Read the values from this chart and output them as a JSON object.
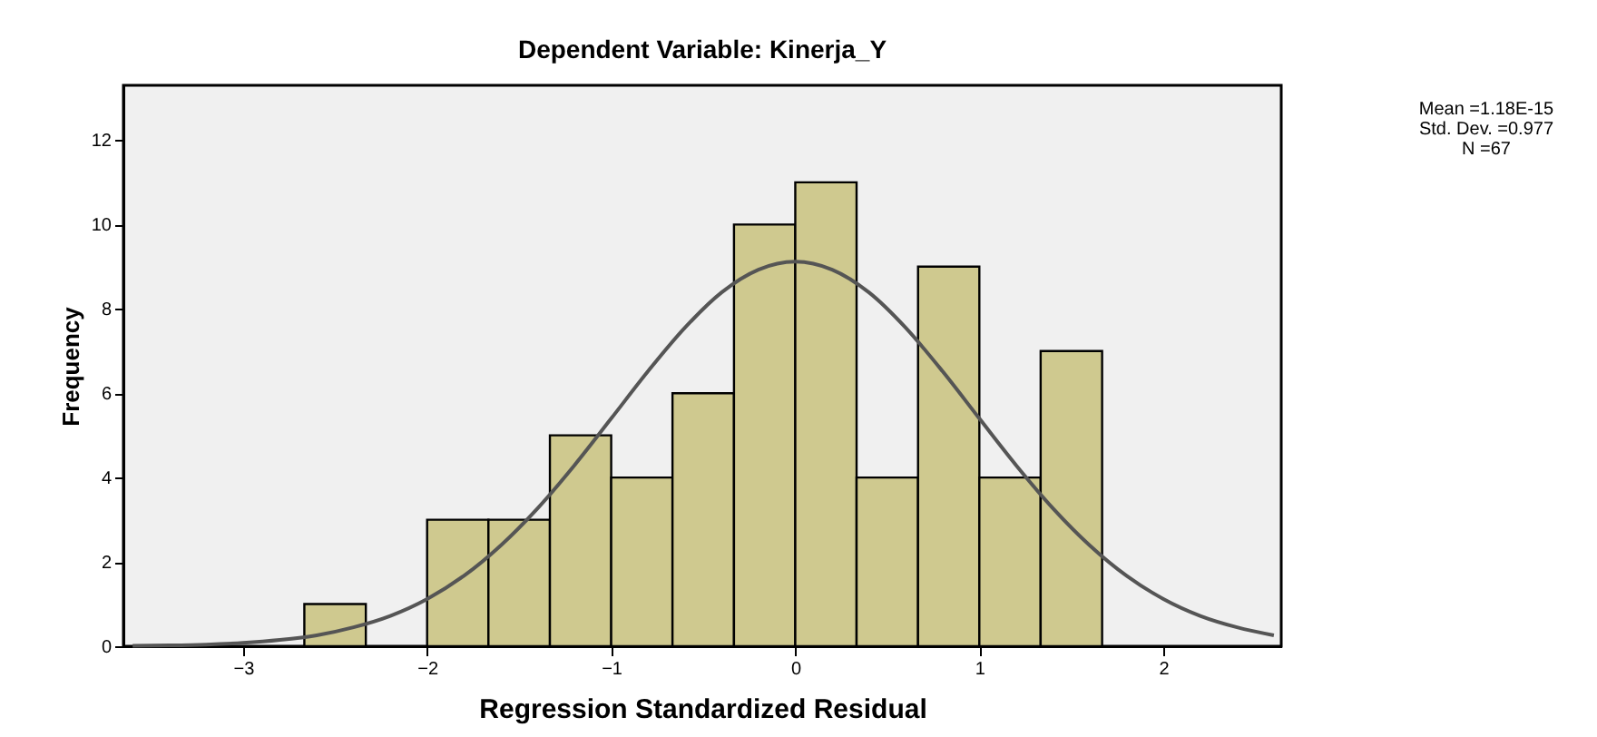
{
  "chart_data": {
    "type": "histogram",
    "title": "Dependent Variable: Kinerja_Y",
    "xlabel": "Regression Standardized Residual",
    "ylabel": "Frequency",
    "series": [
      {
        "color": "#cfc98f",
        "bins": [
          -2.667,
          -2.333,
          -2.0,
          -1.667,
          -1.333,
          -1.0,
          -0.667,
          -0.333,
          0.0,
          0.333,
          0.667,
          1.0,
          1.333,
          1.667
        ],
        "values": [
          1,
          0,
          3,
          3,
          5,
          4,
          6,
          10,
          11,
          4,
          9,
          4,
          7
        ]
      },
      {
        "type": "line",
        "color": "#555555",
        "x": [
          -3.6,
          -3.4,
          -3.2,
          -3.0,
          -2.8,
          -2.6,
          -2.4,
          -2.2,
          -2.0,
          -1.8,
          -1.6,
          -1.4,
          -1.2,
          -1.0,
          -0.8,
          -0.6,
          -0.4,
          -0.2,
          0.0,
          0.2,
          0.4,
          0.6,
          0.8,
          1.0,
          1.2,
          1.4,
          1.6,
          1.8,
          2.0,
          2.2,
          2.4,
          2.6
        ],
        "values": [
          0.01,
          0.02,
          0.04,
          0.08,
          0.15,
          0.26,
          0.45,
          0.72,
          1.12,
          1.67,
          2.39,
          3.27,
          4.29,
          5.4,
          6.52,
          7.55,
          8.39,
          8.93,
          9.12,
          8.93,
          8.39,
          7.55,
          6.52,
          5.4,
          4.29,
          3.27,
          2.39,
          1.67,
          1.12,
          0.72,
          0.45,
          0.26
        ]
      }
    ],
    "xlim": [
      -3.65,
      2.64
    ],
    "xticks": [
      -3,
      -2,
      -1,
      0,
      1,
      2
    ],
    "ylim": [
      0,
      13.3
    ],
    "yticks": [
      0,
      2,
      4,
      6,
      8,
      10,
      12
    ],
    "grid": false,
    "marker": "none",
    "line_style": "solid",
    "annotations": [
      "Mean =1.18E-15",
      "Std. Dev. =0.977",
      "N =67"
    ]
  }
}
